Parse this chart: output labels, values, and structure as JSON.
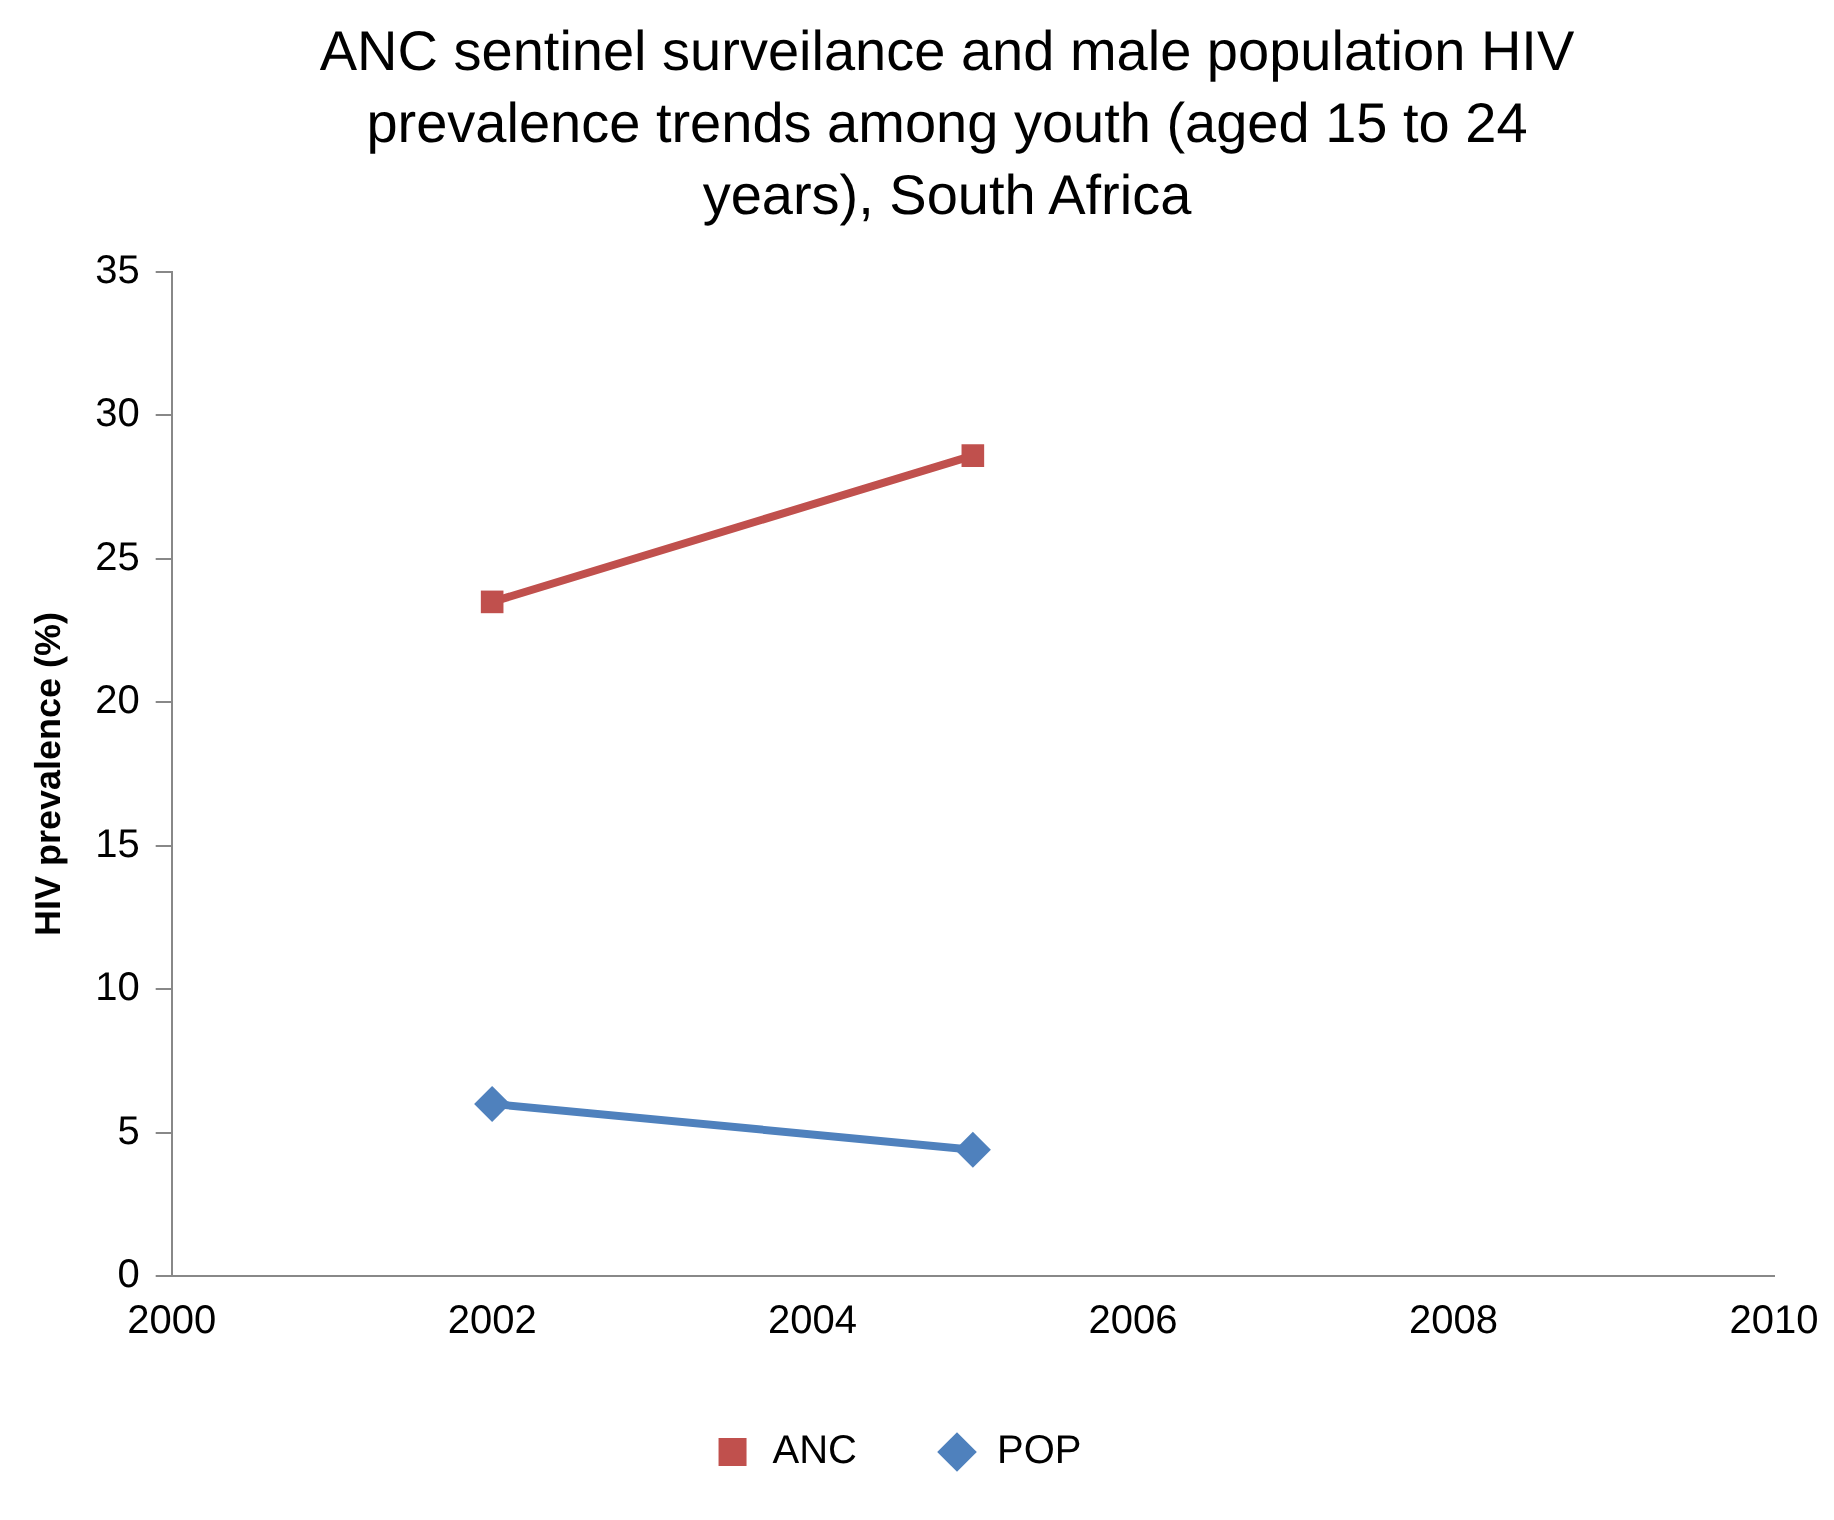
{
  "chart_data": {
    "type": "line",
    "title": "ANC sentinel surveilance and male population HIV prevalence trends among youth (aged 15 to 24 years), South Africa",
    "ylabel": "HIV prevalence (%)",
    "x": [
      2002,
      2005
    ],
    "series": [
      {
        "name": "ANC",
        "color": "#c0504d",
        "marker": "square",
        "values": [
          23.5,
          28.6
        ]
      },
      {
        "name": "POP",
        "color": "#4f81bd",
        "marker": "diamond",
        "values": [
          6.0,
          4.4
        ]
      }
    ],
    "xlim": [
      2000,
      2010
    ],
    "xticks": [
      2000,
      2002,
      2004,
      2006,
      2008,
      2010
    ],
    "ylim": [
      0,
      35
    ],
    "yticks": [
      0,
      5,
      10,
      15,
      20,
      25,
      30,
      35
    ],
    "grid": false,
    "legend": "bottom",
    "line_style": "solid"
  }
}
